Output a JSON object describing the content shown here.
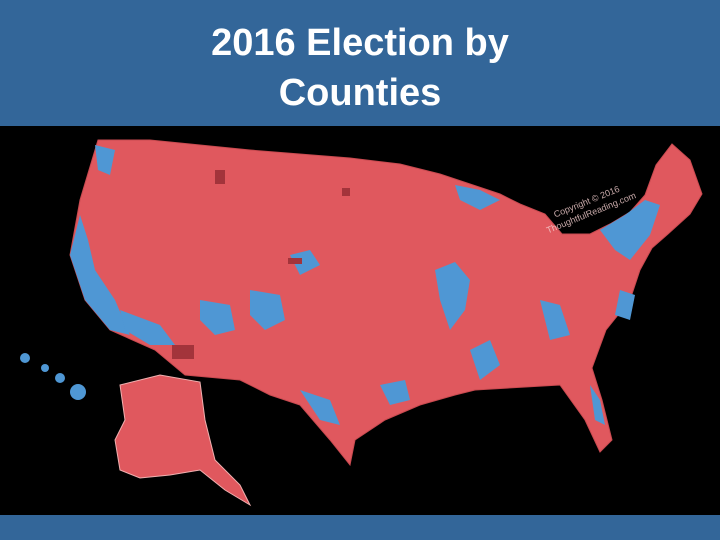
{
  "header": {
    "title_lines": [
      "2016 Election by",
      "Counties"
    ]
  },
  "watermark": {
    "lines": [
      "Copyright © 2016",
      "ThoughtfulReading.com"
    ]
  }
}
